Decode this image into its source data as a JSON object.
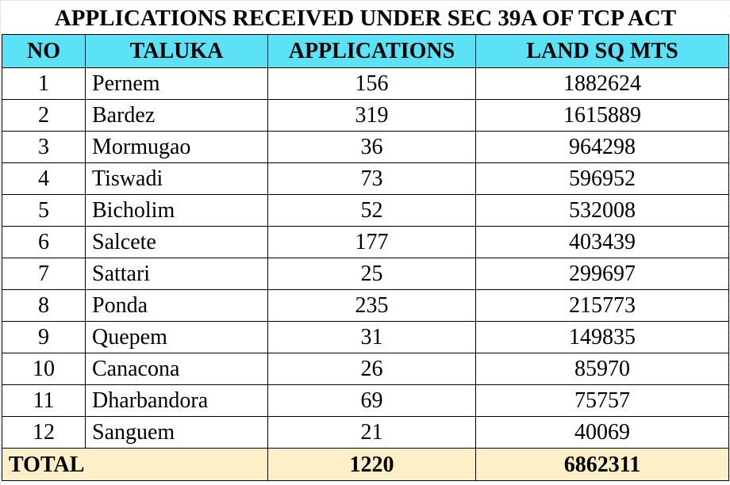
{
  "title": "APPLICATIONS RECEIVED UNDER SEC 39A OF TCP ACT",
  "colors": {
    "header_bg": "#5ce2f6",
    "total_bg": "#fdf0c8"
  },
  "columns": {
    "no": "NO",
    "taluka": "TALUKA",
    "applications": "APPLICATIONS",
    "land": "LAND SQ MTS"
  },
  "rows": [
    {
      "no": "1",
      "taluka": "Pernem",
      "applications": "156",
      "land": "1882624"
    },
    {
      "no": "2",
      "taluka": "Bardez",
      "applications": "319",
      "land": "1615889"
    },
    {
      "no": "3",
      "taluka": "Mormugao",
      "applications": "36",
      "land": "964298"
    },
    {
      "no": "4",
      "taluka": "Tiswadi",
      "applications": "73",
      "land": "596952"
    },
    {
      "no": "5",
      "taluka": "Bicholim",
      "applications": "52",
      "land": "532008"
    },
    {
      "no": "6",
      "taluka": "Salcete",
      "applications": "177",
      "land": "403439"
    },
    {
      "no": "7",
      "taluka": "Sattari",
      "applications": "25",
      "land": "299697"
    },
    {
      "no": "8",
      "taluka": "Ponda",
      "applications": "235",
      "land": "215773"
    },
    {
      "no": "9",
      "taluka": "Quepem",
      "applications": "31",
      "land": "149835"
    },
    {
      "no": "10",
      "taluka": "Canacona",
      "applications": "26",
      "land": "85970"
    },
    {
      "no": "11",
      "taluka": "Dharbandora",
      "applications": "69",
      "land": "75757"
    },
    {
      "no": "12",
      "taluka": "Sanguem",
      "applications": "21",
      "land": "40069"
    }
  ],
  "total": {
    "label": "TOTAL",
    "applications": "1220",
    "land": "6862311"
  }
}
